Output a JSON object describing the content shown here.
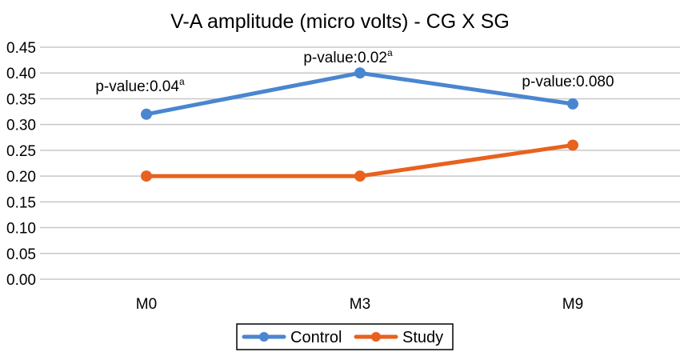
{
  "chart_data": {
    "type": "line",
    "title": "V-A amplitude (micro volts) - CG X SG",
    "xlabel": "",
    "ylabel": "",
    "categories": [
      "M0",
      "M3",
      "M9"
    ],
    "ylim": [
      0,
      0.45
    ],
    "yticks": [
      "0.00",
      "0.05",
      "0.10",
      "0.15",
      "0.20",
      "0.25",
      "0.30",
      "0.35",
      "0.40",
      "0.45"
    ],
    "grid": true,
    "legend_position": "bottom",
    "series": [
      {
        "name": "Control",
        "values": [
          0.32,
          0.4,
          0.34
        ],
        "color": "#4a86d0"
      },
      {
        "name": "Study",
        "values": [
          0.2,
          0.2,
          0.26
        ],
        "color": "#e8621e"
      }
    ],
    "annotations": [
      {
        "category": "M0",
        "text": "p-value:0.04",
        "sup": "a"
      },
      {
        "category": "M3",
        "text": "p-value:0.02",
        "sup": "a"
      },
      {
        "category": "M9",
        "text": "p-value:0.080",
        "sup": ""
      }
    ]
  }
}
